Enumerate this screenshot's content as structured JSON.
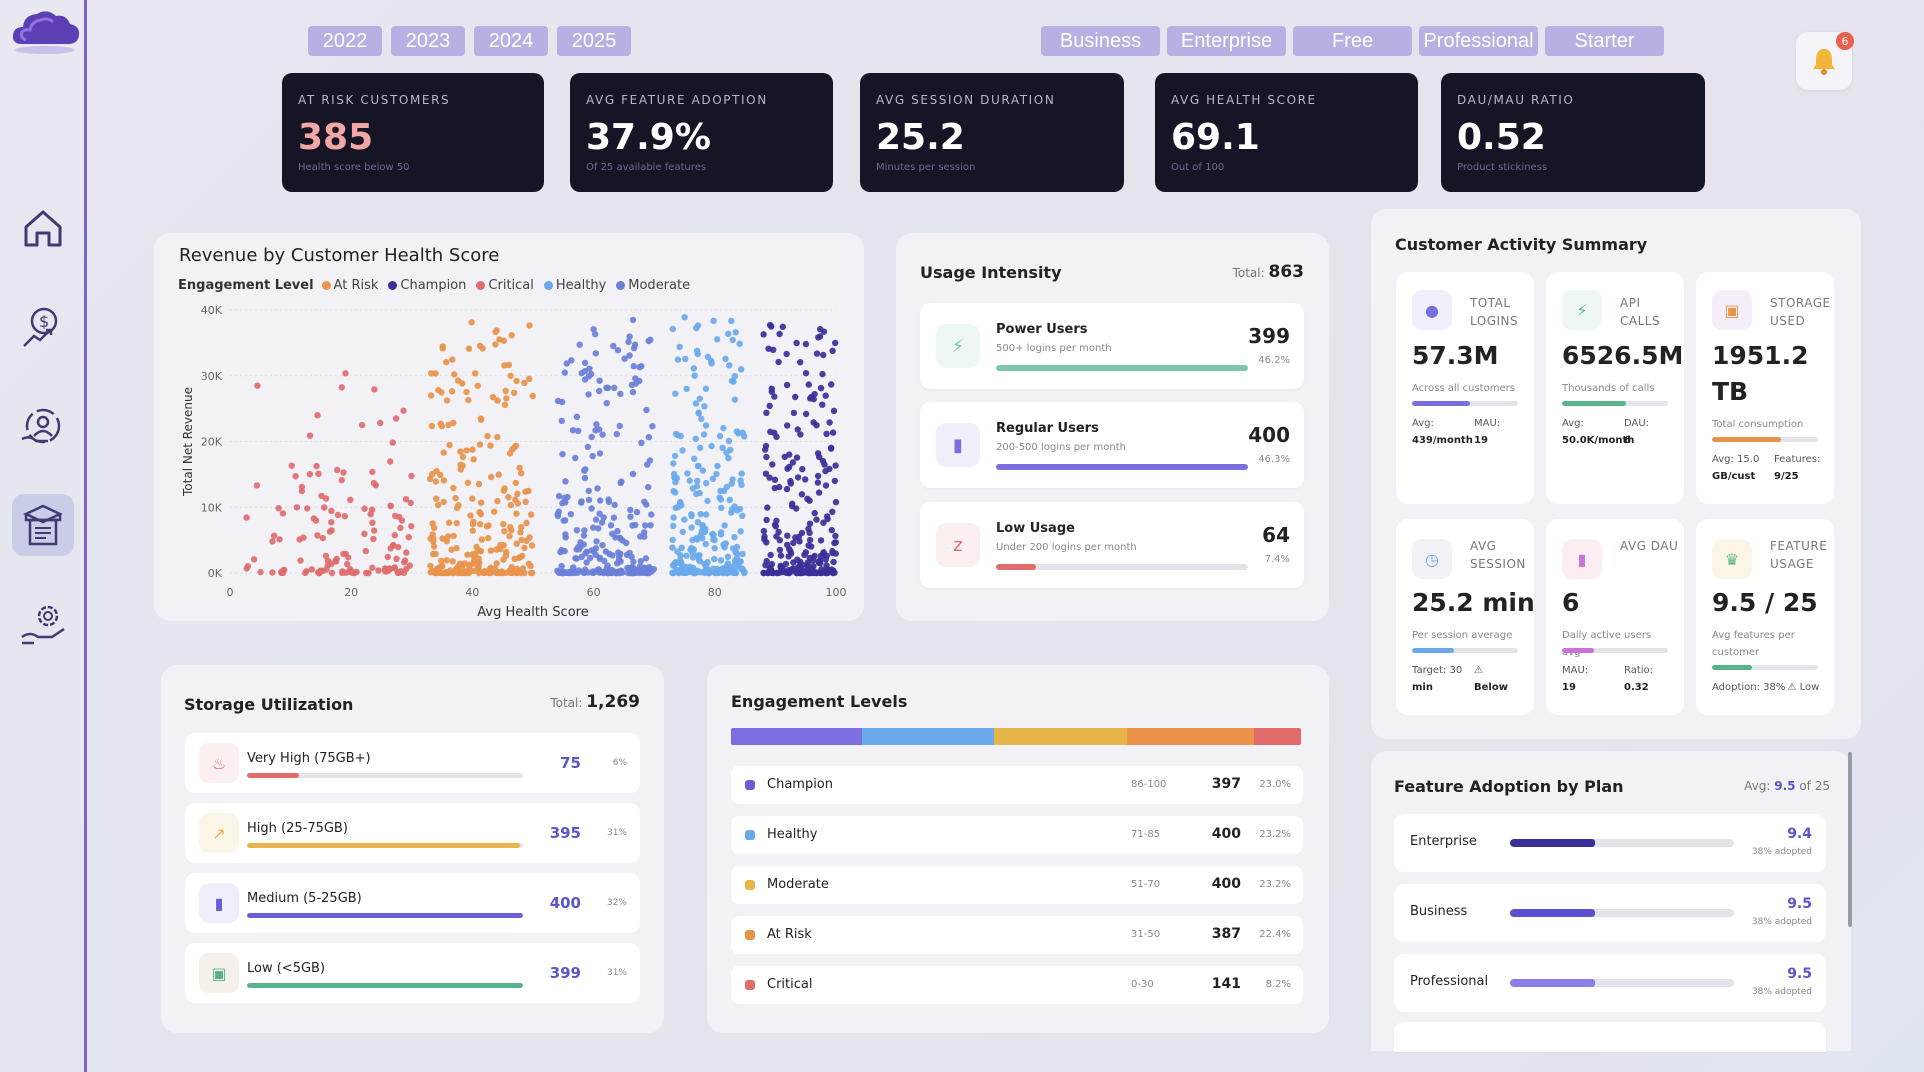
{
  "filters": {
    "years": [
      "2022",
      "2023",
      "2024",
      "2025"
    ],
    "plans": [
      "Business",
      "Enterprise",
      "Free",
      "Professional",
      "Starter"
    ]
  },
  "notifications": {
    "count": "6"
  },
  "kpis": [
    {
      "label": "AT RISK CUSTOMERS",
      "value": "385",
      "sub": "Health score below 50",
      "color": "#f2a6a6"
    },
    {
      "label": "AVG FEATURE ADOPTION",
      "value": "37.9%",
      "sub": "Of 25 available features",
      "color": "#ffffff"
    },
    {
      "label": "AVG SESSION DURATION",
      "value": "25.2",
      "sub": "Minutes per session",
      "color": "#ffffff"
    },
    {
      "label": "AVG HEALTH SCORE",
      "value": "69.1",
      "sub": "Out of 100",
      "color": "#ffffff"
    },
    {
      "label": "DAU/MAU RATIO",
      "value": "0.52",
      "sub": "Product stickiness",
      "color": "#ffffff"
    }
  ],
  "revenue_chart": {
    "legend_title": "Engagement Level",
    "legend": [
      {
        "name": "At Risk",
        "color": "#e8924a"
      },
      {
        "name": "Champion",
        "color": "#3a3099"
      },
      {
        "name": "Critical",
        "color": "#e06c6c"
      },
      {
        "name": "Healthy",
        "color": "#6aa9ec"
      },
      {
        "name": "Moderate",
        "color": "#6a7fd8"
      }
    ]
  },
  "chart_data": {
    "type": "scatter",
    "title": "Revenue by Customer Health Score",
    "xlabel": "Avg Health Score",
    "ylabel": "Total Net Revenue",
    "xlim": [
      0,
      100
    ],
    "ylim": [
      0,
      40000
    ],
    "x_ticks": [
      "0",
      "20",
      "40",
      "60",
      "80",
      "100"
    ],
    "y_ticks": [
      "0K",
      "10K",
      "20K",
      "30K",
      "40K"
    ],
    "legend_position": "top-left",
    "series": [
      {
        "name": "Critical",
        "color": "#e06c6c",
        "x_range": [
          2,
          30
        ],
        "y_max": 33500,
        "count": 141
      },
      {
        "name": "At Risk",
        "color": "#e8924a",
        "x_range": [
          33,
          50
        ],
        "y_max": 39000,
        "count": 387
      },
      {
        "name": "Moderate",
        "color": "#6a7fd8",
        "x_range": [
          54,
          70
        ],
        "y_max": 39000,
        "count": 400
      },
      {
        "name": "Healthy",
        "color": "#6aa9ec",
        "x_range": [
          73,
          85
        ],
        "y_max": 39000,
        "count": 400
      },
      {
        "name": "Champion",
        "color": "#3a3099",
        "x_range": [
          88,
          100
        ],
        "y_max": 39000,
        "count": 397
      }
    ]
  },
  "usage": {
    "title": "Usage Intensity",
    "total_label": "Total:",
    "total": "863",
    "rows": [
      {
        "name": "Power Users",
        "sub": "500+ logins per month",
        "value": "399",
        "pct": "46.2%",
        "fill": 1.0,
        "color": "#7cc8a6",
        "icon": "lightning-icon",
        "glyph": "⚡",
        "bg": "#eef7f1"
      },
      {
        "name": "Regular Users",
        "sub": "200-500 logins per month",
        "value": "400",
        "pct": "46.3%",
        "fill": 1.0,
        "color": "#7b6fe0",
        "icon": "bar-chart-icon",
        "glyph": "▮",
        "bg": "#efeefb"
      },
      {
        "name": "Low Usage",
        "sub": "Under 200 logins per month",
        "value": "64",
        "pct": "7.4%",
        "fill": 0.16,
        "color": "#e06c6c",
        "icon": "sleep-icon",
        "glyph": "z",
        "bg": "#fcefef"
      }
    ]
  },
  "activity": {
    "title": "Customer Activity Summary",
    "tiles": [
      {
        "label": "TOTAL LOGINS",
        "value": "57.3M",
        "sub": "Across all customers",
        "fill": 0.55,
        "color": "#7b6fe0",
        "foot": [
          "Avg:",
          "439/month",
          "MAU:",
          "19"
        ],
        "icon": "user-icon",
        "glyph": "●",
        "bg": "#efeefb"
      },
      {
        "label": "API CALLS",
        "value": "6526.5M",
        "sub": "Thousands of calls",
        "fill": 0.6,
        "color": "#58b38a",
        "foot": [
          "Avg:",
          "50.0K/month",
          "DAU:",
          "6"
        ],
        "icon": "lightning-icon",
        "glyph": "⚡",
        "bg": "#eef7f1"
      },
      {
        "label": "STORAGE USED",
        "value": "1951.2 TB",
        "sub": "Total consumption",
        "fill": 0.65,
        "color": "#e8924a",
        "foot": [
          "Avg: 15.0",
          "GB/cust",
          "Features:",
          "9/25"
        ],
        "icon": "floppy-icon",
        "glyph": "▣",
        "bg": "#f5eef8"
      },
      {
        "label": "AVG SESSION",
        "value": "25.2 min",
        "sub": "Per session average",
        "fill": 0.4,
        "color": "#6aa9ec",
        "foot": [
          "Target: 30",
          "min",
          "⚠",
          "Below"
        ],
        "icon": "clock-icon",
        "glyph": "◷",
        "bg": "#f2f2f6"
      },
      {
        "label": "AVG DAU",
        "value": "6",
        "sub": "Daily active users avg",
        "fill": 0.3,
        "color": "#c774d6",
        "foot": [
          "MAU:",
          "19",
          "Ratio:",
          "0.32"
        ],
        "icon": "bar-chart-icon",
        "glyph": "▮",
        "bg": "#fbeef3"
      },
      {
        "label": "FEATURE USAGE",
        "value": "9.5 / 25",
        "sub": "Avg features per customer",
        "fill": 0.38,
        "color": "#58b38a",
        "foot": [
          "Adoption: 38%",
          "⚠ Low"
        ],
        "icon": "trophy-icon",
        "glyph": "♛",
        "bg": "#fbf5e8"
      }
    ]
  },
  "storage": {
    "title": "Storage Utilization",
    "total_label": "Total:",
    "total": "1,269",
    "rows": [
      {
        "name": "Very High (75GB+)",
        "value": "75",
        "pct": "6%",
        "fill": 0.19,
        "color": "#e06c6c",
        "icon": "fire-icon",
        "glyph": "♨",
        "bg": "#fcefef"
      },
      {
        "name": "High (25-75GB)",
        "value": "395",
        "pct": "31%",
        "fill": 0.99,
        "color": "#e8b54a",
        "icon": "trend-chart-icon",
        "glyph": "↗",
        "bg": "#fbf5e8"
      },
      {
        "name": "Medium (5-25GB)",
        "value": "400",
        "pct": "32%",
        "fill": 1.0,
        "color": "#6a5fd8",
        "icon": "bar-chart-icon",
        "glyph": "▮",
        "bg": "#efeefb"
      },
      {
        "name": "Low (<5GB)",
        "value": "399",
        "pct": "31%",
        "fill": 1.0,
        "color": "#58b38a",
        "icon": "package-icon",
        "glyph": "▣",
        "bg": "#f5f1ea"
      }
    ]
  },
  "engagement": {
    "title": "Engagement Levels",
    "segments": [
      {
        "color": "#7b6fe0",
        "pct": 23.0
      },
      {
        "color": "#6aa9ec",
        "pct": 23.2
      },
      {
        "color": "#e8b54a",
        "pct": 23.2
      },
      {
        "color": "#e8924a",
        "pct": 22.4
      },
      {
        "color": "#e06c6c",
        "pct": 8.2
      }
    ],
    "rows": [
      {
        "name": "Champion",
        "range": "86-100",
        "count": "397",
        "pct": "23.0%",
        "color": "#6a5fd8"
      },
      {
        "name": "Healthy",
        "range": "71-85",
        "count": "400",
        "pct": "23.2%",
        "color": "#6aa9ec"
      },
      {
        "name": "Moderate",
        "range": "51-70",
        "count": "400",
        "pct": "23.2%",
        "color": "#e8b54a"
      },
      {
        "name": "At Risk",
        "range": "31-50",
        "count": "387",
        "pct": "22.4%",
        "color": "#e8924a"
      },
      {
        "name": "Critical",
        "range": "0-30",
        "count": "141",
        "pct": "8.2%",
        "color": "#e06c6c"
      }
    ]
  },
  "feature_adoption": {
    "title": "Feature Adoption by Plan",
    "avg_label": "Avg:",
    "avg_value": "9.5",
    "avg_suffix": "of 25",
    "rows": [
      {
        "name": "Enterprise",
        "value": "9.4",
        "sub": "38% adopted",
        "fill": 0.38,
        "color": "#3a3099"
      },
      {
        "name": "Business",
        "value": "9.5",
        "sub": "38% adopted",
        "fill": 0.38,
        "color": "#5b50d0"
      },
      {
        "name": "Professional",
        "value": "9.5",
        "sub": "38% adopted",
        "fill": 0.38,
        "color": "#8a7fe8"
      }
    ]
  }
}
